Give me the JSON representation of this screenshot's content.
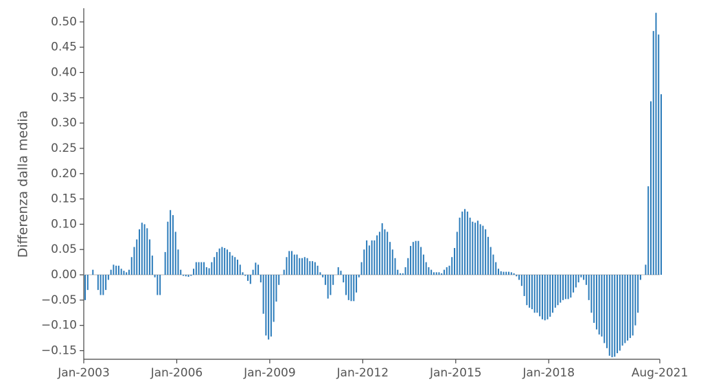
{
  "chart_data": {
    "type": "bar",
    "y_label": "Differenza dalla media",
    "color": "#2b7bba",
    "categories": [
      "Jan-2003",
      null,
      null,
      null,
      null,
      null,
      null,
      null,
      null,
      null,
      null,
      null,
      null,
      null,
      null,
      null,
      null,
      null,
      null,
      null,
      null,
      null,
      null,
      null,
      null,
      null,
      null,
      null,
      null,
      null,
      null,
      null,
      null,
      null,
      null,
      null,
      "Jan-2006",
      null,
      null,
      null,
      null,
      null,
      null,
      null,
      null,
      null,
      null,
      null,
      null,
      null,
      null,
      null,
      null,
      null,
      null,
      null,
      null,
      null,
      null,
      null,
      null,
      null,
      null,
      null,
      null,
      null,
      null,
      null,
      null,
      null,
      null,
      null,
      "Jan-2009",
      null,
      null,
      null,
      null,
      null,
      null,
      null,
      null,
      null,
      null,
      null,
      null,
      null,
      null,
      null,
      null,
      null,
      null,
      null,
      null,
      null,
      null,
      null,
      null,
      null,
      null,
      null,
      null,
      null,
      null,
      null,
      null,
      null,
      null,
      null,
      "Jan-2012",
      null,
      null,
      null,
      null,
      null,
      null,
      null,
      null,
      null,
      null,
      null,
      null,
      null,
      null,
      null,
      null,
      null,
      null,
      null,
      null,
      null,
      null,
      null,
      null,
      null,
      null,
      null,
      null,
      null,
      null,
      null,
      null,
      null,
      null,
      null,
      "Jan-2015",
      null,
      null,
      null,
      null,
      null,
      null,
      null,
      null,
      null,
      null,
      null,
      null,
      null,
      null,
      null,
      null,
      null,
      null,
      null,
      null,
      null,
      null,
      null,
      null,
      null,
      null,
      null,
      null,
      null,
      null,
      null,
      null,
      null,
      null,
      null,
      "Jan-2018",
      null,
      null,
      null,
      null,
      null,
      null,
      null,
      null,
      null,
      null,
      null,
      null,
      null,
      null,
      null,
      null,
      null,
      null,
      null,
      null,
      null,
      null,
      null,
      null,
      null,
      null,
      null,
      null,
      null,
      null,
      null,
      null,
      null,
      null,
      null,
      null,
      null,
      null,
      null,
      null,
      null,
      null,
      "Aug-2021"
    ],
    "values": [
      -0.05,
      -0.03,
      0.0,
      0.01,
      0.0,
      -0.03,
      -0.04,
      -0.04,
      -0.03,
      -0.01,
      0.01,
      0.02,
      0.018,
      0.018,
      0.012,
      0.008,
      0.005,
      0.01,
      0.035,
      0.055,
      0.07,
      0.09,
      0.103,
      0.1,
      0.092,
      0.07,
      0.038,
      -0.005,
      -0.04,
      -0.04,
      0.0,
      0.045,
      0.105,
      0.128,
      0.118,
      0.085,
      0.05,
      0.01,
      -0.002,
      -0.003,
      -0.004,
      -0.002,
      0.012,
      0.025,
      0.025,
      0.025,
      0.025,
      0.015,
      0.013,
      0.025,
      0.035,
      0.045,
      0.052,
      0.055,
      0.053,
      0.05,
      0.045,
      0.038,
      0.035,
      0.03,
      0.02,
      0.005,
      -0.002,
      -0.012,
      -0.018,
      0.01,
      0.024,
      0.02,
      -0.015,
      -0.077,
      -0.12,
      -0.128,
      -0.122,
      -0.093,
      -0.053,
      -0.02,
      0.0,
      0.01,
      0.035,
      0.047,
      0.047,
      0.04,
      0.04,
      0.033,
      0.033,
      0.035,
      0.033,
      0.027,
      0.027,
      0.025,
      0.018,
      0.005,
      -0.005,
      -0.02,
      -0.047,
      -0.04,
      -0.02,
      0.0,
      0.015,
      0.008,
      -0.015,
      -0.04,
      -0.05,
      -0.052,
      -0.052,
      -0.035,
      -0.005,
      0.025,
      0.05,
      0.068,
      0.058,
      0.068,
      0.068,
      0.078,
      0.085,
      0.102,
      0.09,
      0.085,
      0.065,
      0.05,
      0.033,
      0.01,
      0.003,
      0.003,
      0.015,
      0.033,
      0.057,
      0.065,
      0.067,
      0.067,
      0.055,
      0.04,
      0.025,
      0.015,
      0.01,
      0.005,
      0.005,
      0.005,
      0.003,
      0.01,
      0.015,
      0.018,
      0.035,
      0.053,
      0.085,
      0.113,
      0.125,
      0.13,
      0.125,
      0.113,
      0.105,
      0.103,
      0.107,
      0.1,
      0.097,
      0.09,
      0.075,
      0.055,
      0.04,
      0.025,
      0.012,
      0.007,
      0.006,
      0.006,
      0.006,
      0.005,
      0.003,
      -0.003,
      -0.01,
      -0.022,
      -0.042,
      -0.06,
      -0.065,
      -0.068,
      -0.075,
      -0.075,
      -0.082,
      -0.088,
      -0.09,
      -0.088,
      -0.083,
      -0.075,
      -0.065,
      -0.06,
      -0.055,
      -0.05,
      -0.048,
      -0.048,
      -0.045,
      -0.035,
      -0.025,
      -0.015,
      -0.005,
      -0.01,
      -0.02,
      -0.05,
      -0.075,
      -0.095,
      -0.108,
      -0.118,
      -0.122,
      -0.135,
      -0.145,
      -0.16,
      -0.163,
      -0.162,
      -0.155,
      -0.15,
      -0.14,
      -0.135,
      -0.13,
      -0.125,
      -0.12,
      -0.1,
      -0.075,
      -0.01,
      0.0,
      0.02,
      0.175,
      0.343,
      0.482,
      0.518,
      0.475,
      0.357
    ],
    "ylim": [
      -0.167,
      0.527
    ],
    "yticks": [
      {
        "value": -0.15,
        "label": "−0.15"
      },
      {
        "value": -0.1,
        "label": "−0.10"
      },
      {
        "value": -0.05,
        "label": "−0.05"
      },
      {
        "value": 0,
        "label": "0.00"
      },
      {
        "value": 0.05,
        "label": "0.05"
      },
      {
        "value": 0.1,
        "label": "0.10"
      },
      {
        "value": 0.15,
        "label": "0.15"
      },
      {
        "value": 0.2,
        "label": "0.20"
      },
      {
        "value": 0.25,
        "label": "0.25"
      },
      {
        "value": 0.3,
        "label": "0.30"
      },
      {
        "value": 0.35,
        "label": "0.35"
      },
      {
        "value": 0.4,
        "label": "0.40"
      },
      {
        "value": 0.45,
        "label": "0.45"
      },
      {
        "value": 0.5,
        "label": "0.50"
      }
    ]
  }
}
